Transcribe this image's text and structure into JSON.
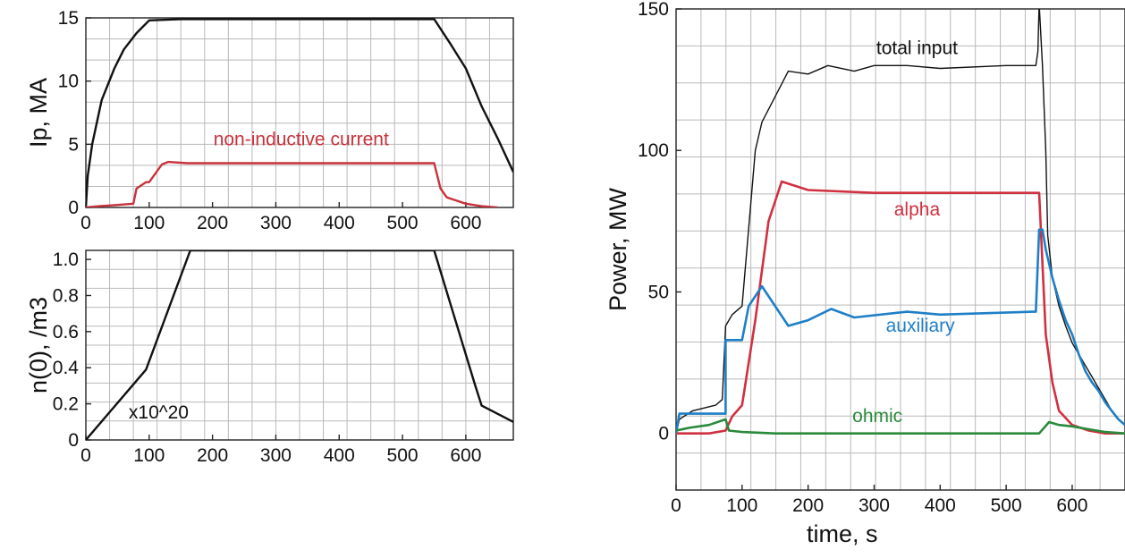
{
  "chart_data": [
    {
      "id": "ip",
      "type": "line",
      "ylabel": "Ip, MA",
      "xlabel": "",
      "xlim": [
        0,
        675
      ],
      "ylim": [
        0,
        15
      ],
      "xticks": [
        0,
        100,
        200,
        300,
        400,
        500,
        600
      ],
      "yticks": [
        0,
        5,
        10,
        15
      ],
      "grid": true,
      "series": [
        {
          "name": "",
          "color": "#111111",
          "x": [
            0,
            3,
            10,
            25,
            45,
            60,
            80,
            100,
            150,
            200,
            300,
            400,
            500,
            550,
            575,
            600,
            625,
            650,
            675
          ],
          "y": [
            0,
            2.5,
            5,
            8.5,
            11,
            12.5,
            13.8,
            14.8,
            14.9,
            14.9,
            14.9,
            14.9,
            14.9,
            14.9,
            13,
            11,
            8,
            5.5,
            2.8
          ]
        },
        {
          "name": "non-inductive current",
          "color": "#c8323c",
          "x": [
            0,
            20,
            50,
            75,
            80,
            95,
            100,
            120,
            130,
            160,
            200,
            300,
            400,
            500,
            550,
            560,
            570,
            600,
            625,
            650
          ],
          "y": [
            0,
            0.1,
            0.2,
            0.3,
            1.5,
            2.0,
            2.0,
            3.4,
            3.6,
            3.5,
            3.5,
            3.5,
            3.5,
            3.5,
            3.5,
            1.5,
            0.8,
            0.3,
            0.1,
            0
          ]
        }
      ],
      "annotations": [
        {
          "text": "non-inductive current",
          "x": 340,
          "y": 4.9,
          "color": "#c8323c"
        }
      ]
    },
    {
      "id": "density",
      "type": "line",
      "ylabel": "n(0), /m3",
      "xlabel": "",
      "xlim": [
        0,
        675
      ],
      "ylim": [
        0,
        1.05
      ],
      "xticks": [
        0,
        100,
        200,
        300,
        400,
        500,
        600
      ],
      "yticks": [
        0,
        0.2,
        0.4,
        0.6,
        0.8,
        1.0
      ],
      "ytick_labels": [
        "0",
        "0.2",
        "0.4",
        "0.6",
        "0.8",
        "1.0"
      ],
      "grid": true,
      "series": [
        {
          "name": "",
          "color": "#111111",
          "x": [
            0,
            95,
            165,
            550,
            615,
            625,
            675
          ],
          "y": [
            0,
            0.39,
            1.05,
            1.05,
            0.3,
            0.19,
            0.1
          ]
        }
      ],
      "annotations": [
        {
          "text": "x10^20",
          "x": 115,
          "y": 0.12,
          "color": "#111111"
        }
      ]
    },
    {
      "id": "power",
      "type": "line",
      "ylabel": "Power, MW",
      "xlabel": "time, s",
      "xlim": [
        0,
        680
      ],
      "ylim": [
        -20,
        150
      ],
      "xticks": [
        0,
        100,
        200,
        300,
        400,
        500,
        600
      ],
      "yticks": [
        0,
        50,
        100,
        150
      ],
      "grid": true,
      "series": [
        {
          "name": "total input",
          "color": "#111111",
          "x": [
            0,
            5,
            25,
            60,
            70,
            75,
            85,
            100,
            120,
            130,
            170,
            200,
            230,
            270,
            300,
            350,
            400,
            500,
            545,
            548,
            550,
            555,
            560,
            563,
            570,
            580,
            590,
            600,
            610,
            620,
            630,
            640,
            650,
            660,
            670,
            680
          ],
          "y": [
            0,
            5,
            8,
            10,
            12,
            38,
            42,
            45,
            100,
            110,
            128,
            127,
            130,
            128,
            130,
            130,
            129,
            130,
            130,
            135,
            152,
            130,
            100,
            70,
            55,
            45,
            38,
            32,
            28,
            24,
            20,
            16,
            12,
            8,
            5,
            3
          ]
        },
        {
          "name": "alpha",
          "color": "#d03040",
          "x": [
            0,
            50,
            75,
            85,
            100,
            120,
            140,
            160,
            200,
            300,
            400,
            500,
            545,
            550,
            555,
            560,
            570,
            580,
            600,
            625,
            650,
            680
          ],
          "y": [
            0,
            0,
            1,
            6,
            10,
            40,
            75,
            89,
            86,
            85,
            85,
            85,
            85,
            85,
            60,
            35,
            18,
            8,
            3,
            1,
            0,
            0
          ]
        },
        {
          "name": "auxiliary",
          "color": "#1f7fc6",
          "x": [
            0,
            5,
            75,
            75,
            100,
            110,
            130,
            170,
            200,
            235,
            270,
            350,
            400,
            540,
            545,
            550,
            555,
            560,
            570,
            580,
            590,
            600,
            610,
            620,
            630,
            640,
            650,
            660,
            670,
            680
          ],
          "y": [
            0,
            7,
            7,
            33,
            33,
            45,
            52,
            38,
            40,
            44,
            41,
            43,
            42,
            43,
            43,
            72,
            72,
            65,
            55,
            47,
            40,
            35,
            28,
            22,
            18,
            15,
            11,
            8,
            5,
            3
          ]
        },
        {
          "name": "ohmic",
          "color": "#2a8a3c",
          "x": [
            0,
            20,
            50,
            75,
            80,
            100,
            150,
            200,
            300,
            400,
            500,
            550,
            565,
            580,
            600,
            625,
            650,
            680
          ],
          "y": [
            1,
            2,
            3,
            5,
            1,
            0.5,
            0,
            0,
            0,
            0,
            0,
            0,
            4,
            3,
            2.5,
            1.5,
            0.5,
            0
          ]
        }
      ],
      "annotations": [
        {
          "text": "total input",
          "x": 365,
          "y": 134,
          "color": "#111111"
        },
        {
          "text": "alpha",
          "x": 365,
          "y": 77,
          "color": "#d03040"
        },
        {
          "text": "auxiliary",
          "x": 370,
          "y": 36,
          "color": "#1f7fc6"
        },
        {
          "text": "ohmic",
          "x": 305,
          "y": 4,
          "color": "#2a8a3c"
        }
      ]
    }
  ]
}
